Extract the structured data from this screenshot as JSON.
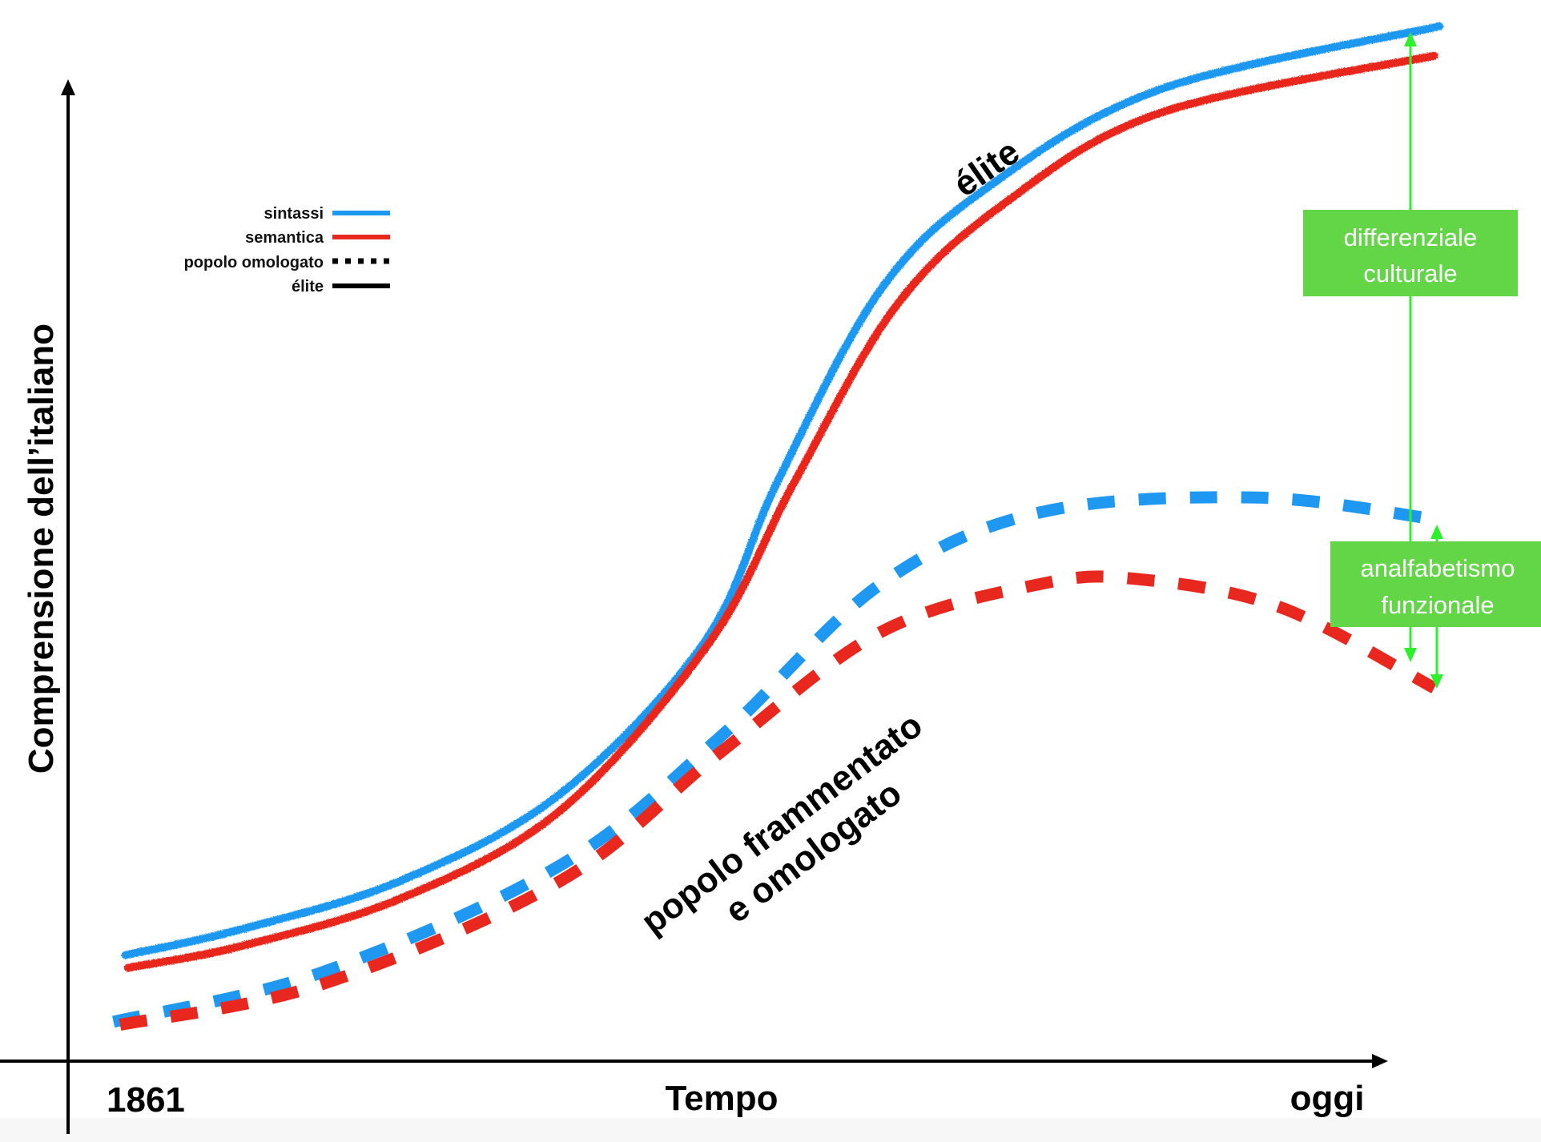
{
  "chart_data": {
    "type": "line",
    "title": "",
    "xlabel": "Tempo",
    "ylabel": "Comprensione dell’italiano",
    "x_tick_labels": {
      "start": "1861",
      "end": "oggi"
    },
    "xlim": [
      0,
      1
    ],
    "ylim": [
      0,
      100
    ],
    "grid": false,
    "legend": {
      "placement": "top-left",
      "entries": [
        {
          "label": "sintassi",
          "style": "solid",
          "color": "#1e98f0"
        },
        {
          "label": "semantica",
          "style": "solid",
          "color": "#e8281f"
        },
        {
          "label": "popolo omologato",
          "style": "dotted",
          "color": "#000000"
        },
        {
          "label": "élite",
          "style": "solid",
          "color": "#000000"
        }
      ]
    },
    "series": [
      {
        "name": "élite – sintassi",
        "group": "élite",
        "color": "#1e98f0",
        "style": "solid",
        "x": [
          0.044,
          0.131,
          0.253,
          0.374,
          0.483,
          0.538,
          0.616,
          0.699,
          0.828,
          1.039
        ],
        "y": [
          10.8,
          13.4,
          18.4,
          27.3,
          42.8,
          59.1,
          78.6,
          89.2,
          99.0,
          105.4
        ]
      },
      {
        "name": "élite – semantica",
        "group": "élite",
        "color": "#e8281f",
        "style": "solid",
        "x": [
          0.046,
          0.131,
          0.253,
          0.374,
          0.487,
          0.551,
          0.628,
          0.713,
          0.828,
          1.035
        ],
        "y": [
          9.5,
          11.7,
          16.6,
          25.6,
          42.8,
          59.1,
          77.0,
          87.7,
          96.6,
          102.4
        ]
      },
      {
        "name": "popolo – sintassi",
        "group": "popolo omologato",
        "color": "#1e98f0",
        "style": "dashed",
        "x": [
          0.035,
          0.192,
          0.374,
          0.495,
          0.616,
          0.737,
          0.901,
          1.035
        ],
        "y": [
          4.0,
          9.0,
          20.0,
          33.1,
          48.6,
          55.9,
          57.4,
          55.2
        ]
      },
      {
        "name": "popolo – semantica",
        "group": "popolo omologato",
        "color": "#e8281f",
        "style": "dashed",
        "x": [
          0.04,
          0.192,
          0.374,
          0.495,
          0.616,
          0.737,
          0.81,
          0.919,
          1.035
        ],
        "y": [
          3.7,
          7.8,
          18.4,
          31.5,
          43.7,
          48.6,
          49.1,
          46.2,
          38.0
        ]
      }
    ],
    "annotations": [
      {
        "text": "élite",
        "near_series": "élite – sintassi",
        "rotation_deg": -35
      },
      {
        "text_lines": [
          "popolo frammentato",
          "e omologato"
        ],
        "near_series": "popolo – semantica",
        "rotation_deg": -37
      },
      {
        "box_lines": [
          "differenziale",
          "culturale"
        ],
        "box_color": "#63d648",
        "arrow_color": "#2cf02c",
        "arrow": "double",
        "between": [
          "élite – sintassi",
          "popolo – semantica"
        ],
        "at_x": 0.985
      },
      {
        "box_lines": [
          "analfabetismo",
          "funzionale"
        ],
        "box_color": "#63d648",
        "arrow_color": "#2cf02c",
        "arrow": "double",
        "between": [
          "popolo – sintassi",
          "popolo – semantica"
        ],
        "at_x": 1.037
      }
    ]
  }
}
